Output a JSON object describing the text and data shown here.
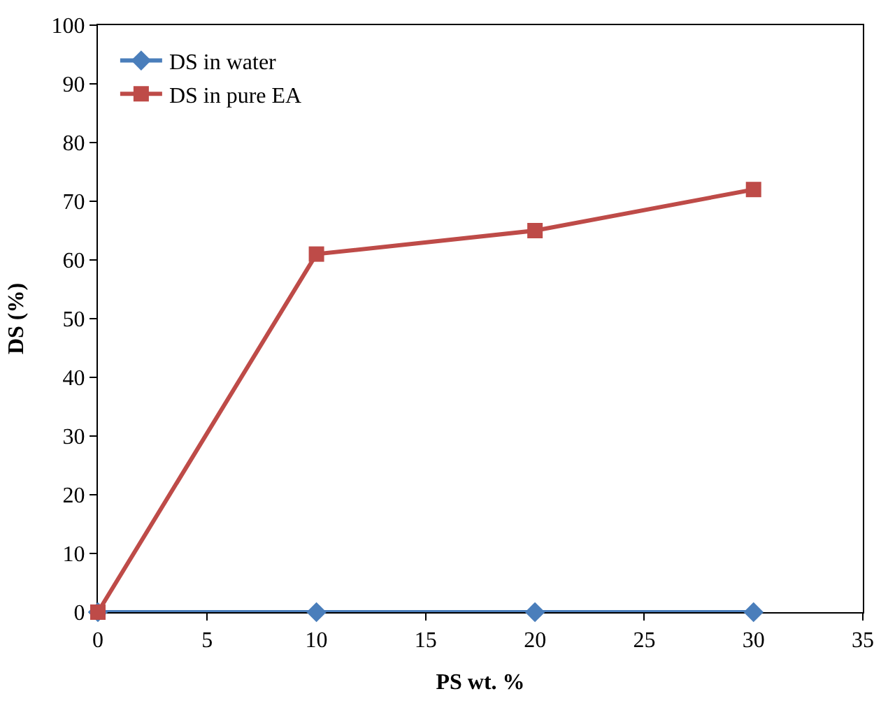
{
  "chart_data": {
    "type": "line",
    "xlabel": "PS wt. %",
    "ylabel": "DS (%)",
    "x": [
      0,
      10,
      20,
      30
    ],
    "series": [
      {
        "name": "DS in water",
        "color": "#4a7ebb",
        "values": [
          0,
          0,
          0,
          0
        ],
        "marker": "diamond"
      },
      {
        "name": "DS in pure EA",
        "color": "#be4b48",
        "values": [
          0,
          61,
          65,
          72
        ],
        "marker": "square"
      }
    ],
    "xlim": [
      0,
      35
    ],
    "xticks": [
      0,
      5,
      10,
      15,
      20,
      25,
      30,
      35
    ],
    "ylim": [
      0,
      100
    ],
    "yticks": [
      0,
      10,
      20,
      30,
      40,
      50,
      60,
      70,
      80,
      90,
      100
    ],
    "legend": "top left",
    "line_style": "solid"
  }
}
